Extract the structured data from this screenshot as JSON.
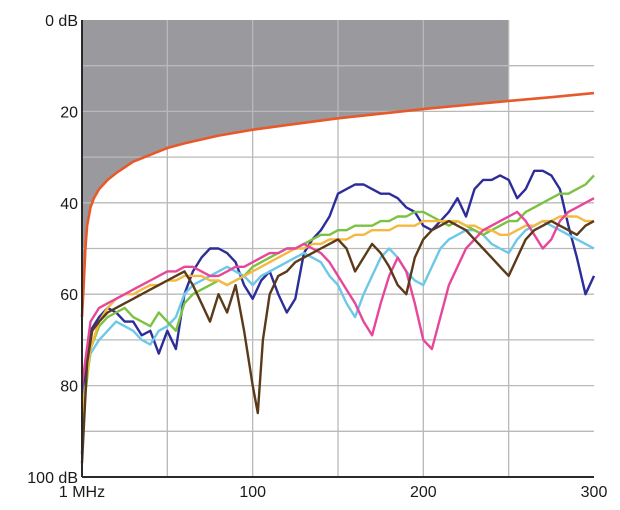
{
  "chart_data": {
    "type": "line",
    "title": "",
    "xlabel": "",
    "ylabel": "",
    "xlim": [
      0,
      300
    ],
    "ylim": [
      0,
      100
    ],
    "y_inverted": true,
    "grid": true,
    "x_ticks": [
      {
        "value": 0,
        "label": "1 MHz"
      },
      {
        "value": 100,
        "label": "100"
      },
      {
        "value": 200,
        "label": "200"
      },
      {
        "value": 300,
        "label": "300"
      }
    ],
    "y_ticks": [
      {
        "value": 0,
        "label": "0 dB"
      },
      {
        "value": 20,
        "label": "20"
      },
      {
        "value": 40,
        "label": "40"
      },
      {
        "value": 60,
        "label": "60"
      },
      {
        "value": 80,
        "label": "80"
      },
      {
        "value": 100,
        "label": "100 dB"
      }
    ],
    "shaded_region": {
      "x": [
        0,
        250
      ],
      "color": "#9a9a9e",
      "upper_boundary": "limit-line"
    },
    "limit_line": {
      "color": "#e8592a",
      "x": [
        0,
        1,
        2,
        3,
        5,
        7,
        10,
        15,
        20,
        30,
        40,
        50,
        60,
        80,
        100,
        120,
        150,
        175,
        200,
        225,
        250,
        275,
        300
      ],
      "values": [
        65,
        58,
        50,
        45,
        41,
        39,
        37,
        35,
        33.5,
        31,
        29.5,
        28,
        27,
        25.3,
        24,
        23,
        21.5,
        20.5,
        19.5,
        18.6,
        17.7,
        16.9,
        16
      ]
    },
    "series": [
      {
        "color": "#2d2d9a",
        "x": [
          0,
          2,
          5,
          10,
          15,
          20,
          25,
          30,
          35,
          40,
          45,
          50,
          55,
          60,
          65,
          70,
          75,
          80,
          85,
          90,
          95,
          100,
          105,
          110,
          115,
          120,
          125,
          130,
          135,
          140,
          145,
          150,
          155,
          160,
          165,
          170,
          175,
          180,
          185,
          190,
          195,
          200,
          205,
          210,
          215,
          220,
          225,
          230,
          235,
          240,
          245,
          250,
          255,
          260,
          265,
          270,
          275,
          280,
          285,
          290,
          295,
          300
        ],
        "values": [
          95,
          75,
          68,
          65,
          63,
          64,
          66,
          66,
          69,
          68,
          73,
          68,
          72,
          60,
          55,
          52,
          50,
          50,
          51,
          53,
          58,
          61,
          57,
          55,
          60,
          64,
          61,
          51,
          48,
          46,
          43,
          38,
          37,
          36,
          36,
          37,
          38,
          38,
          39,
          41,
          42,
          45,
          46,
          44,
          42,
          39,
          43,
          37,
          35,
          35,
          34,
          35,
          39,
          37,
          33,
          33,
          34,
          37,
          45,
          52,
          60,
          56
        ]
      },
      {
        "color": "#6dc8e8",
        "x": [
          0,
          5,
          10,
          15,
          20,
          25,
          30,
          35,
          40,
          45,
          50,
          55,
          60,
          65,
          70,
          75,
          80,
          85,
          90,
          95,
          100,
          105,
          110,
          115,
          120,
          125,
          130,
          135,
          140,
          145,
          150,
          155,
          160,
          165,
          170,
          175,
          180,
          185,
          190,
          195,
          200,
          205,
          210,
          215,
          220,
          225,
          230,
          235,
          240,
          245,
          250,
          255,
          260,
          265,
          270,
          275,
          280,
          285,
          290,
          295,
          300
        ],
        "values": [
          85,
          73,
          70,
          68,
          66,
          67,
          68,
          70,
          71,
          68,
          67,
          65,
          60,
          58,
          57,
          56,
          55,
          54,
          55,
          56,
          58,
          56,
          55,
          54,
          53,
          52,
          51,
          52,
          53,
          56,
          58,
          62,
          65,
          60,
          56,
          52,
          50,
          52,
          55,
          57,
          58,
          54,
          50,
          48,
          47,
          46,
          46,
          47,
          49,
          50,
          51,
          48,
          46,
          45,
          44,
          45,
          46,
          47,
          48,
          49,
          50
        ]
      },
      {
        "color": "#7cc242",
        "x": [
          0,
          5,
          10,
          15,
          20,
          25,
          30,
          35,
          40,
          45,
          50,
          55,
          60,
          65,
          70,
          75,
          80,
          85,
          90,
          95,
          100,
          105,
          110,
          115,
          120,
          125,
          130,
          135,
          140,
          145,
          150,
          155,
          160,
          165,
          170,
          175,
          180,
          185,
          190,
          195,
          200,
          205,
          210,
          215,
          220,
          225,
          230,
          235,
          240,
          245,
          250,
          255,
          260,
          265,
          270,
          275,
          280,
          285,
          290,
          295,
          300
        ],
        "values": [
          88,
          72,
          67,
          65,
          64,
          63,
          65,
          66,
          67,
          64,
          66,
          68,
          62,
          60,
          59,
          58,
          57,
          58,
          57,
          56,
          54,
          53,
          52,
          51,
          50,
          50,
          49,
          48,
          47,
          47,
          46,
          46,
          45,
          45,
          45,
          44,
          44,
          43,
          43,
          42,
          42,
          43,
          44,
          45,
          44,
          45,
          46,
          47,
          46,
          45,
          44,
          44,
          42,
          41,
          40,
          39,
          38,
          38,
          37,
          36,
          34
        ]
      },
      {
        "color": "#f5b942",
        "x": [
          0,
          5,
          10,
          15,
          20,
          25,
          30,
          35,
          40,
          45,
          50,
          55,
          60,
          65,
          70,
          75,
          80,
          85,
          90,
          95,
          100,
          105,
          110,
          115,
          120,
          125,
          130,
          135,
          140,
          145,
          150,
          155,
          160,
          165,
          170,
          175,
          180,
          185,
          190,
          195,
          200,
          205,
          210,
          215,
          220,
          225,
          230,
          235,
          240,
          245,
          250,
          255,
          260,
          265,
          270,
          275,
          280,
          285,
          290,
          295,
          300
        ],
        "values": [
          86,
          72,
          66,
          63,
          61,
          60,
          60,
          59,
          58,
          58,
          57,
          57,
          56,
          56,
          56,
          57,
          57,
          58,
          57,
          56,
          55,
          54,
          53,
          52,
          51,
          50,
          50,
          49,
          49,
          48,
          48,
          48,
          47,
          47,
          46,
          46,
          46,
          45,
          45,
          45,
          44,
          44,
          44,
          44,
          44,
          45,
          45,
          46,
          46,
          47,
          47,
          46,
          45,
          45,
          44,
          44,
          43,
          43,
          43,
          44,
          44
        ]
      },
      {
        "color": "#e6479a",
        "x": [
          0,
          5,
          10,
          15,
          20,
          25,
          30,
          35,
          40,
          45,
          50,
          55,
          60,
          65,
          70,
          75,
          80,
          85,
          90,
          95,
          100,
          105,
          110,
          115,
          120,
          125,
          130,
          135,
          140,
          145,
          150,
          155,
          160,
          165,
          170,
          175,
          180,
          185,
          190,
          195,
          200,
          205,
          210,
          215,
          220,
          225,
          230,
          235,
          240,
          245,
          250,
          255,
          260,
          265,
          270,
          275,
          280,
          285,
          290,
          295,
          300
        ],
        "values": [
          80,
          66,
          63,
          62,
          61,
          60,
          59,
          58,
          57,
          56,
          55,
          55,
          54,
          54,
          55,
          56,
          56,
          55,
          54,
          54,
          53,
          52,
          51,
          51,
          50,
          50,
          49,
          50,
          51,
          53,
          56,
          59,
          62,
          66,
          69,
          62,
          56,
          52,
          55,
          62,
          70,
          72,
          65,
          58,
          54,
          50,
          48,
          46,
          45,
          44,
          43,
          42,
          44,
          47,
          50,
          48,
          44,
          42,
          41,
          40,
          39
        ]
      },
      {
        "color": "#5a3a1a",
        "x": [
          0,
          3,
          6,
          10,
          15,
          20,
          25,
          30,
          35,
          40,
          45,
          50,
          55,
          60,
          65,
          70,
          75,
          80,
          85,
          90,
          95,
          100,
          103,
          106,
          110,
          115,
          120,
          125,
          130,
          135,
          140,
          145,
          150,
          155,
          160,
          165,
          170,
          175,
          180,
          185,
          190,
          195,
          200,
          205,
          210,
          215,
          220,
          225,
          230,
          235,
          240,
          245,
          250,
          255,
          260,
          265,
          270,
          275,
          280,
          285,
          290,
          295,
          300
        ],
        "values": [
          97,
          75,
          68,
          66,
          64,
          63,
          62,
          61,
          60,
          59,
          58,
          57,
          56,
          55,
          58,
          62,
          66,
          60,
          64,
          58,
          68,
          80,
          86,
          70,
          60,
          56,
          55,
          53,
          52,
          51,
          50,
          49,
          48,
          50,
          55,
          52,
          49,
          51,
          54,
          58,
          60,
          52,
          48,
          46,
          45,
          44,
          45,
          46,
          48,
          50,
          52,
          54,
          56,
          52,
          48,
          46,
          45,
          44,
          45,
          46,
          47,
          45,
          44
        ]
      }
    ]
  }
}
